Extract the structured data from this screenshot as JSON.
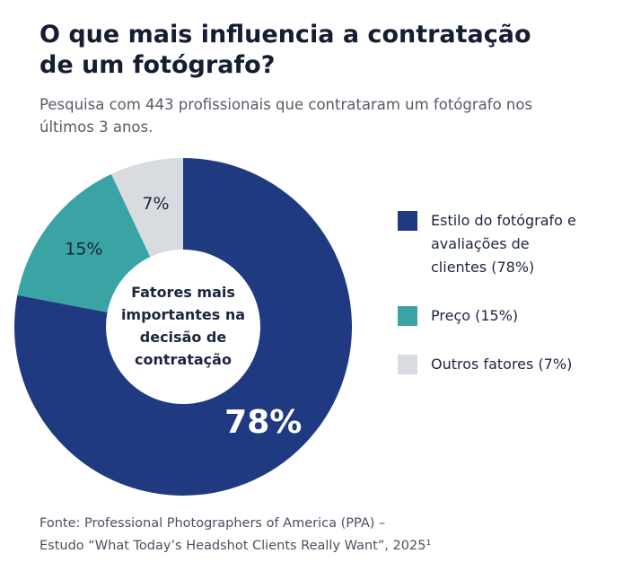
{
  "chart_data": {
    "type": "donut",
    "title": "O que mais influencia a contratação de um fotógrafo?",
    "subtitle": "Pesquisa com 443 profissionais que contrataram um fotógrafo nos últimos 3 anos.",
    "center_label": "Fatores mais importantes na decisão de contratação",
    "categories": [
      "Estilo do fotógrafo e avaliações de clientes (78%)",
      "Preço (15%)",
      "Outros fatores (7%)"
    ],
    "values": [
      78,
      15,
      7
    ],
    "value_labels": [
      "78%",
      "15%",
      "7%"
    ],
    "colors": [
      "#1f3a80",
      "#3aa3a3",
      "#d8dce1"
    ],
    "source": [
      "Fonte: Professional Photographers of America (PPA) –",
      "Estudo “What Today’s Headshot Clients Really Want”, 2025¹"
    ]
  }
}
